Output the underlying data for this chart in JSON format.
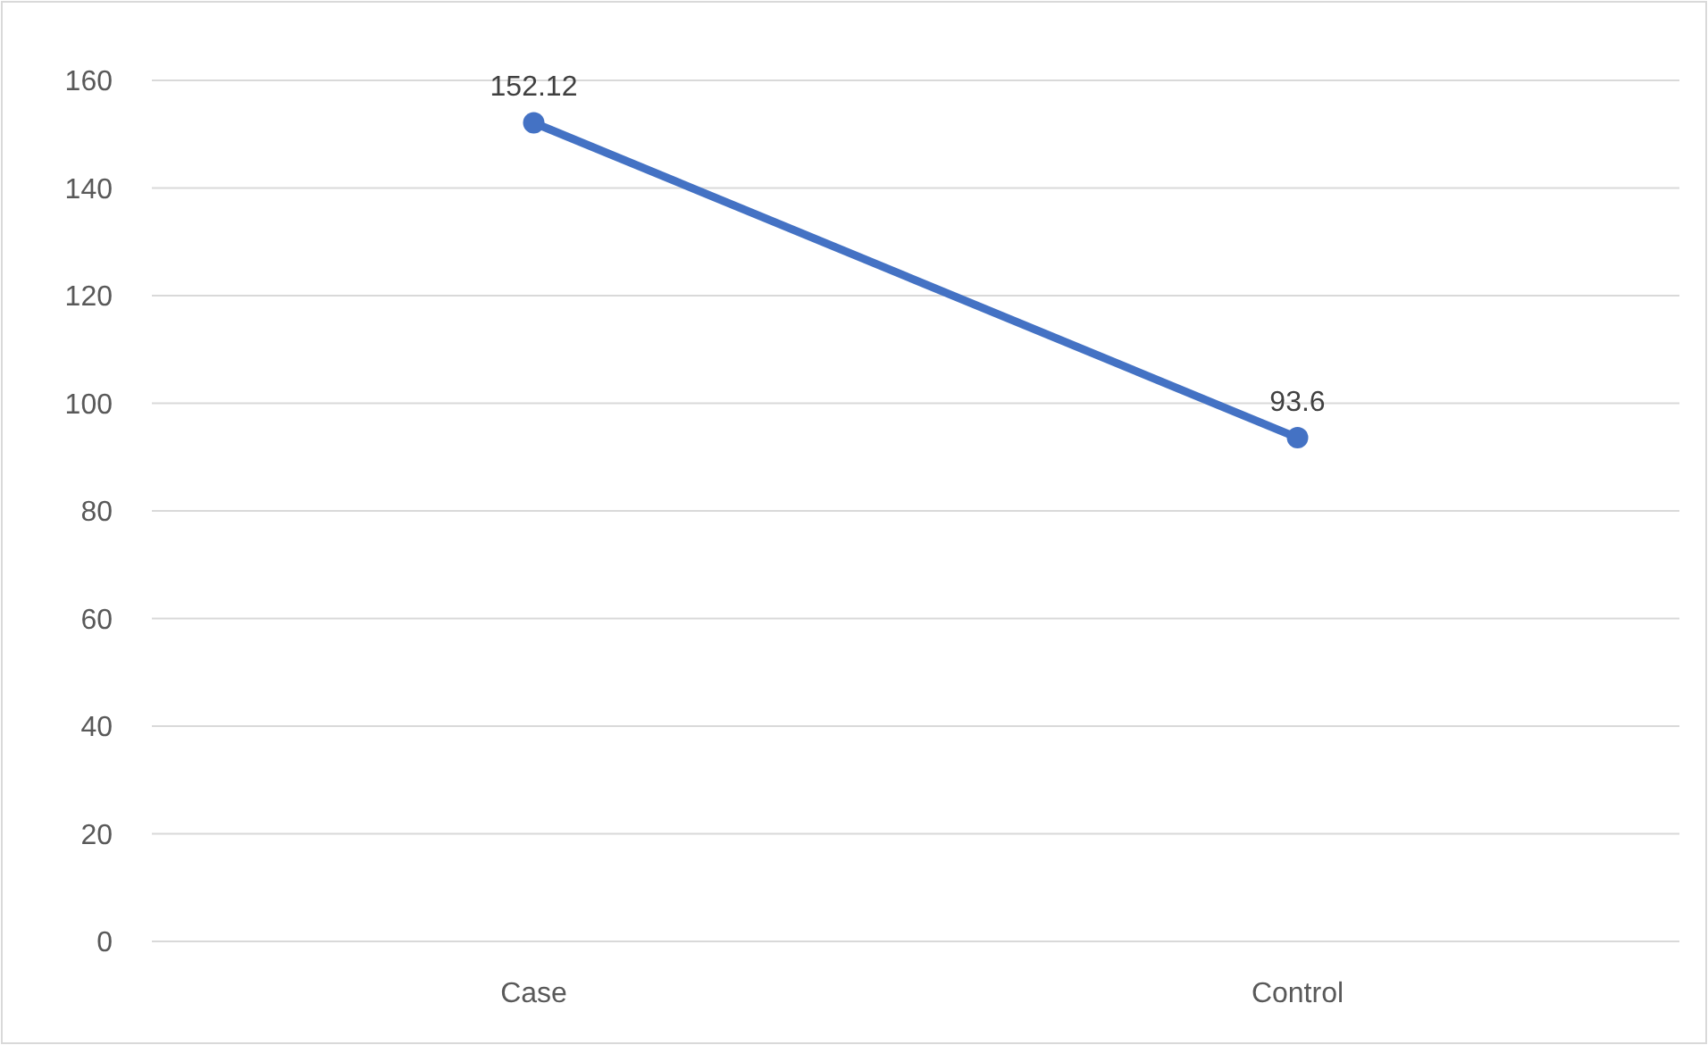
{
  "chart_data": {
    "type": "line",
    "categories": [
      "Case",
      "Control"
    ],
    "series": [
      {
        "color": "#4472c4",
        "values": [
          152.12,
          93.6
        ]
      }
    ],
    "ylim": [
      0,
      160
    ],
    "yticks": [
      0,
      20,
      40,
      60,
      80,
      100,
      120,
      140,
      160
    ],
    "grid": "y",
    "marker": "circle",
    "line_style": "solid",
    "data_labels": true
  }
}
